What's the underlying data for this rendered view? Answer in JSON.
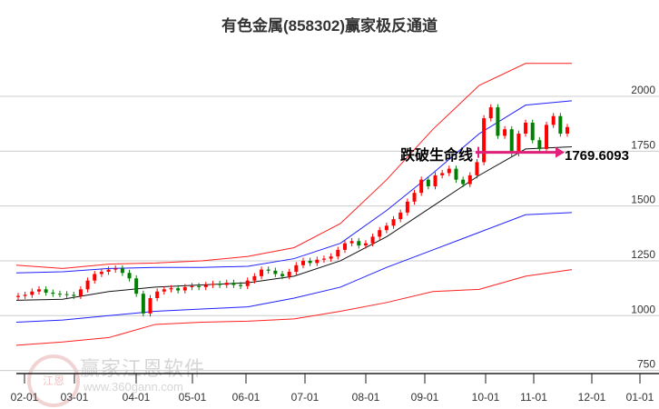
{
  "chart_data": {
    "type": "candlestick",
    "title": "有色金属(858302)赢家极反通道",
    "ylim": [
      750,
      2150
    ],
    "yticks": [
      750,
      1000,
      1250,
      1500,
      1750,
      2000
    ],
    "xticks": [
      "02-01",
      "03-01",
      "04-01",
      "05-01",
      "06-01",
      "07-01",
      "08-01",
      "09-01",
      "10-01",
      "11-01",
      "12-01",
      "01-01"
    ],
    "closes": [
      1090,
      1095,
      1110,
      1120,
      1105,
      1100,
      1098,
      1095,
      1090,
      1120,
      1160,
      1190,
      1200,
      1210,
      1215,
      1195,
      1170,
      1100,
      1010,
      1080,
      1110,
      1120,
      1125,
      1115,
      1130,
      1135,
      1130,
      1140,
      1145,
      1140,
      1150,
      1140,
      1135,
      1160,
      1180,
      1210,
      1205,
      1190,
      1180,
      1200,
      1230,
      1250,
      1240,
      1255,
      1260,
      1270,
      1300,
      1330,
      1340,
      1320,
      1330,
      1360,
      1390,
      1410,
      1440,
      1470,
      1520,
      1560,
      1620,
      1590,
      1640,
      1650,
      1670,
      1620,
      1600,
      1640,
      1700,
      1900,
      1950,
      1820,
      1850,
      1740,
      1830,
      1880,
      1800,
      1760,
      1870,
      1910,
      1830,
      1860
    ],
    "bands": [
      {
        "name": "red-upper",
        "color": "#ff2020",
        "values": [
          1230,
          1215,
          1235,
          1240,
          1250,
          1270,
          1310,
          1420,
          1620,
          1850,
          2050,
          2150,
          2150
        ]
      },
      {
        "name": "blue-upper",
        "color": "#2020ff",
        "values": [
          1195,
          1200,
          1215,
          1220,
          1220,
          1225,
          1260,
          1330,
          1480,
          1650,
          1830,
          1960,
          1980
        ]
      },
      {
        "name": "black-mid",
        "color": "#111111",
        "values": [
          1070,
          1075,
          1110,
          1130,
          1140,
          1150,
          1180,
          1250,
          1360,
          1500,
          1640,
          1760,
          1770
        ]
      },
      {
        "name": "blue-lower",
        "color": "#2020ff",
        "values": [
          970,
          980,
          1000,
          1020,
          1030,
          1040,
          1080,
          1130,
          1220,
          1300,
          1380,
          1460,
          1470
        ]
      },
      {
        "name": "red-lower",
        "color": "#ff2020",
        "values": [
          865,
          880,
          900,
          960,
          970,
          975,
          985,
          1020,
          1060,
          1110,
          1120,
          1180,
          1210
        ]
      }
    ],
    "annotation": {
      "label": "跌破生命线",
      "value": "1769.6093",
      "level": 1769.6093
    }
  },
  "watermark": {
    "brand": "赢家江恩软件",
    "url": "www.360gann.com",
    "seal": "江赢恩家"
  },
  "colors": {
    "up": "#ff0000",
    "down": "#008000",
    "arrow": "#e0207a"
  }
}
